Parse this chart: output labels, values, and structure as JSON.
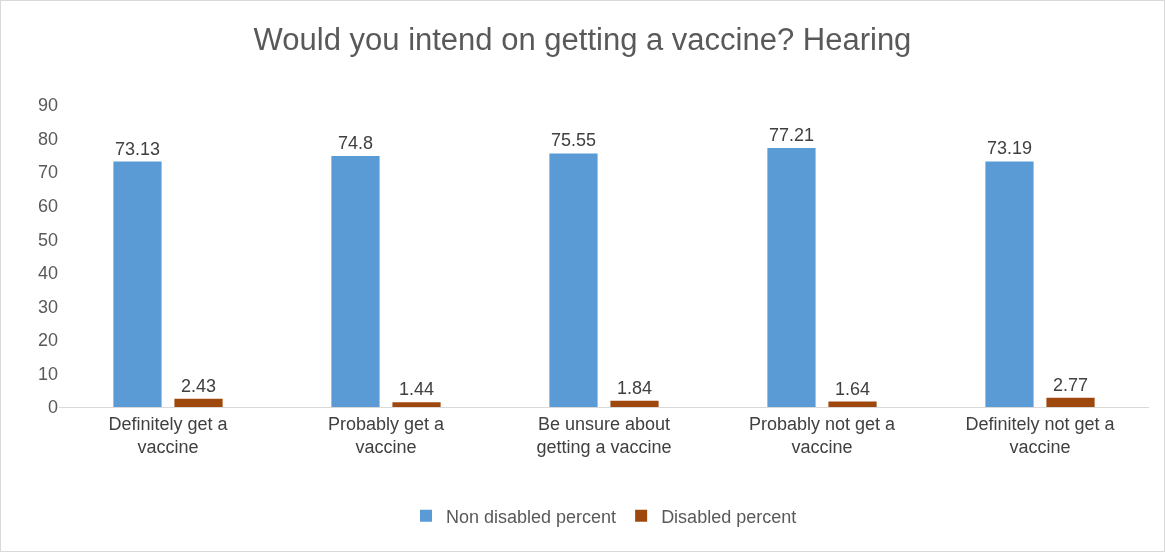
{
  "chart_data": {
    "type": "bar",
    "title": "Would you intend on getting a vaccine? Hearing",
    "categories": [
      "Definitely get a vaccine",
      "Probably get a vaccine",
      "Be unsure about getting a vaccine",
      "Probably not get a vaccine",
      "Definitely not get a vaccine"
    ],
    "series": [
      {
        "name": "Non disabled percent",
        "color": "#5b9bd5",
        "values": [
          73.13,
          74.8,
          75.55,
          77.21,
          73.19
        ]
      },
      {
        "name": "Disabled percent",
        "color": "#9e480e",
        "values": [
          2.43,
          1.44,
          1.84,
          1.64,
          2.77
        ]
      }
    ],
    "ylim": [
      0,
      90
    ],
    "yticks": [
      0,
      10,
      20,
      30,
      40,
      50,
      60,
      70,
      80,
      90
    ],
    "grid": false,
    "legend": "bottom",
    "data_labels": true
  }
}
